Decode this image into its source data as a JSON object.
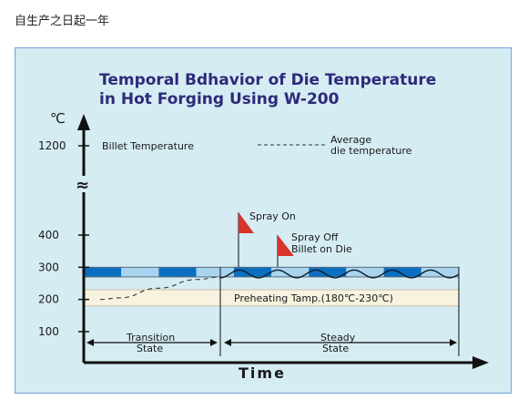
{
  "page": {
    "caption": "自生产之日起一年"
  },
  "chart_data": {
    "type": "line",
    "title_line1": "Temporal Bdhavior of Die Temperature",
    "title_line2": "in Hot Forging Using W-200",
    "y_unit": "℃",
    "x_label": "Time",
    "y_ticks": [
      1200,
      400,
      300,
      200,
      100
    ],
    "axis_break_symbol": "≈",
    "legend": {
      "billet": "Billet Temperature",
      "average_line1": "Average",
      "average_line2": "die temperature"
    },
    "annotations": {
      "spray_on": "Spray On",
      "spray_off_line1": "Spray Off",
      "spray_off_line2": "Billet on Die",
      "preheating": "Preheating Tamp.(180℃-230℃)"
    },
    "regions": [
      {
        "label_line1": "Transition",
        "label_line2": "State"
      },
      {
        "label_line1": "Steady",
        "label_line2": "State"
      }
    ],
    "billet_band": {
      "y_low": 270,
      "y_high": 300
    },
    "preheat_band": {
      "y_low": 180,
      "y_high": 230
    },
    "average_curve": [
      [
        0,
        200
      ],
      [
        0.1,
        205
      ],
      [
        0.3,
        235
      ],
      [
        0.5,
        262
      ],
      [
        0.62,
        270
      ]
    ],
    "colors": {
      "title": "#2e2a7a",
      "band_dark": "#0a6fc0",
      "band_light": "#a8d4ef",
      "flag": "#d8342c",
      "preheat_fill": "#f8f3df"
    }
  }
}
